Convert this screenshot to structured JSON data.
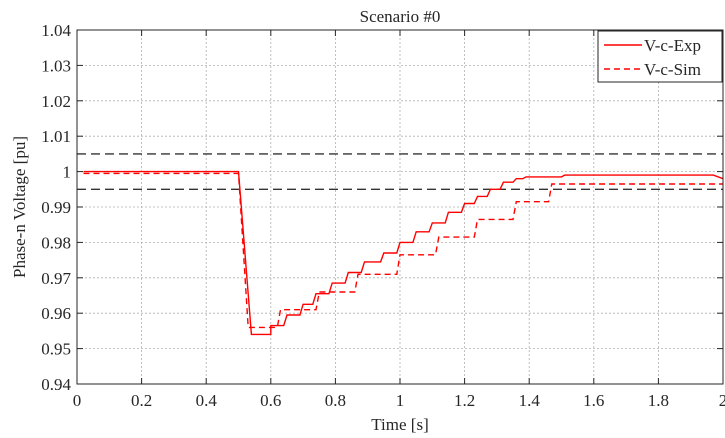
{
  "chart_data": {
    "type": "line",
    "title": "Scenario #0",
    "xlabel": "Time [s]",
    "ylabel": "Phase-n Voltage [pu]",
    "xlim": [
      0,
      2
    ],
    "ylim": [
      0.94,
      1.04
    ],
    "xticks": [
      0,
      0.2,
      0.4,
      0.6,
      0.8,
      1,
      1.2,
      1.4,
      1.6,
      1.8,
      2
    ],
    "yticks": [
      0.94,
      0.95,
      0.96,
      0.97,
      0.98,
      0.99,
      1,
      1.01,
      1.02,
      1.03,
      1.04
    ],
    "xtick_labels": [
      "0",
      "0.2",
      "0.4",
      "0.6",
      "0.8",
      "1",
      "1.2",
      "1.4",
      "1.6",
      "1.8",
      "2"
    ],
    "ytick_labels": [
      "0.94",
      "0.95",
      "0.96",
      "0.97",
      "0.98",
      "0.99",
      "1",
      "1.01",
      "1.02",
      "1.03",
      "1.04"
    ],
    "grid": true,
    "legend_position": "top-right",
    "series": [
      {
        "name": "V-c-Exp",
        "color": "#ff0000",
        "style": "solid",
        "x": [
          0.02,
          0.5,
          0.54,
          0.55,
          0.6,
          0.6,
          0.64,
          0.65,
          0.69,
          0.7,
          0.73,
          0.74,
          0.78,
          0.79,
          0.83,
          0.84,
          0.88,
          0.89,
          0.94,
          0.95,
          0.99,
          1.0,
          1.04,
          1.05,
          1.09,
          1.1,
          1.14,
          1.15,
          1.19,
          1.2,
          1.23,
          1.24,
          1.27,
          1.28,
          1.31,
          1.32,
          1.35,
          1.36,
          1.38,
          1.39,
          1.5,
          1.51,
          1.97,
          2.0
        ],
        "y": [
          1.0,
          1.0,
          0.954,
          0.954,
          0.954,
          0.9565,
          0.9565,
          0.9595,
          0.9595,
          0.9625,
          0.9625,
          0.9655,
          0.9655,
          0.9685,
          0.9685,
          0.9715,
          0.9715,
          0.9745,
          0.9745,
          0.977,
          0.977,
          0.98,
          0.98,
          0.983,
          0.983,
          0.9855,
          0.9855,
          0.9885,
          0.9885,
          0.991,
          0.991,
          0.993,
          0.993,
          0.995,
          0.995,
          0.997,
          0.997,
          0.998,
          0.998,
          0.9985,
          0.9985,
          0.999,
          0.999,
          0.998
        ]
      },
      {
        "name": "V-c-Sim",
        "color": "#ff0000",
        "style": "dashed",
        "x": [
          0.02,
          0.5,
          0.53,
          0.62,
          0.63,
          0.74,
          0.75,
          0.86,
          0.87,
          0.99,
          1.0,
          1.11,
          1.12,
          1.23,
          1.24,
          1.35,
          1.36,
          1.46,
          1.47,
          2.0
        ],
        "y": [
          0.9995,
          0.9995,
          0.956,
          0.956,
          0.961,
          0.961,
          0.966,
          0.966,
          0.971,
          0.971,
          0.9765,
          0.9765,
          0.9815,
          0.9815,
          0.9865,
          0.9865,
          0.9915,
          0.9915,
          0.9965,
          0.9965
        ]
      }
    ],
    "reference_lines": [
      {
        "y": 1.005,
        "color": "#333333",
        "style": "dashed"
      },
      {
        "y": 0.995,
        "color": "#333333",
        "style": "dashed"
      }
    ]
  }
}
